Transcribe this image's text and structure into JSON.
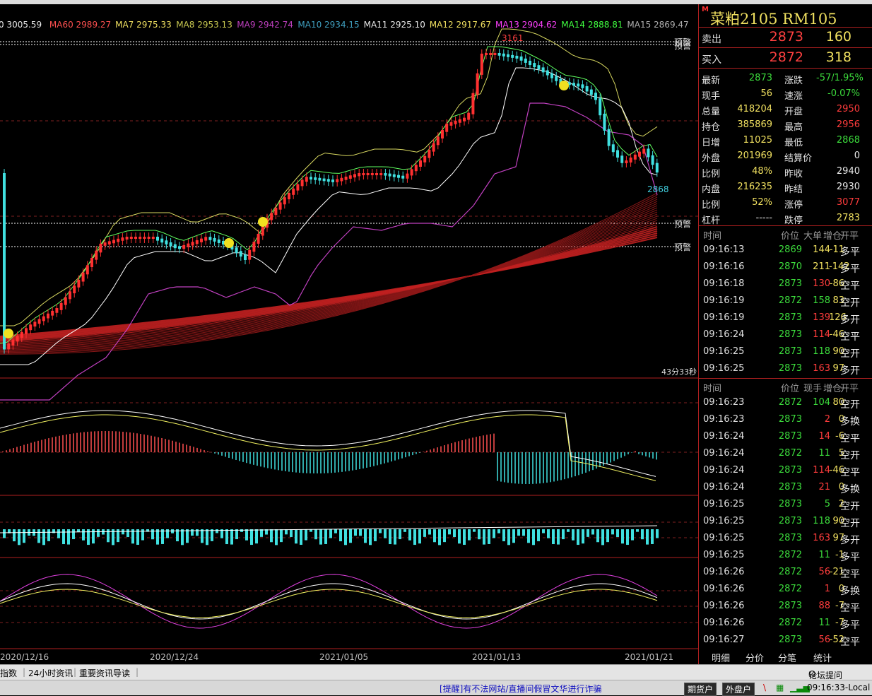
{
  "ma_labels": [
    {
      "text": "0 3005.59",
      "color": "#e8e8e8"
    },
    {
      "text": "MA60 2989.27",
      "color": "#ff5050"
    },
    {
      "text": "MA7 2975.33",
      "color": "#f0e060"
    },
    {
      "text": "MA8 2953.13",
      "color": "#c8c850"
    },
    {
      "text": "MA9 2942.74",
      "color": "#c040c0"
    },
    {
      "text": "MA10 2934.15",
      "color": "#40a0c0"
    },
    {
      "text": "MA11 2925.10",
      "color": "#e8e8e8"
    },
    {
      "text": "MA12 2917.67",
      "color": "#f0e060"
    },
    {
      "text": "MA13 2904.62",
      "color": "#ff40ff"
    },
    {
      "text": "MA14 2888.81",
      "color": "#40ff40"
    },
    {
      "text": "MA15 2869.47",
      "color": "#b0b0b0"
    }
  ],
  "chart_labels": {
    "high": "3161",
    "last": "2868",
    "countdown": "43分33秒",
    "alert": "预警"
  },
  "chart_data": {
    "type": "candlestick",
    "x_dates": [
      "2020/12/16",
      "2020/12/24",
      "2021/01/05",
      "2021/01/13",
      "2021/01/21"
    ],
    "price_range": [
      2640,
      3200
    ],
    "high_marker": 3161,
    "last_marker": 2868,
    "alert_levels": [
      3150,
      3145,
      2965,
      2935
    ]
  },
  "panel": {
    "title": "菜粕2105",
    "code": "RM105",
    "marker": "M",
    "sell": {
      "label": "卖出",
      "price": "2873",
      "vol": "160"
    },
    "buy": {
      "label": "买入",
      "price": "2872",
      "vol": "318"
    },
    "quote_rows": [
      {
        "l1": "最新",
        "v1": "2873",
        "c1": "grn",
        "l2": "涨跌",
        "v2": "-57/1.95%",
        "c2": "grn"
      },
      {
        "l1": "现手",
        "v1": "56",
        "c1": "yel",
        "l2": "速涨",
        "v2": "-0.07%",
        "c2": "grn"
      },
      {
        "l1": "总量",
        "v1": "418204",
        "c1": "yel",
        "l2": "开盘",
        "v2": "2950",
        "c2": "red"
      },
      {
        "l1": "持仓",
        "v1": "385869",
        "c1": "yel",
        "l2": "最高",
        "v2": "2956",
        "c2": "red"
      },
      {
        "l1": "日增",
        "v1": "11025",
        "c1": "yel",
        "l2": "最低",
        "v2": "2868",
        "c2": "grn"
      },
      {
        "l1": "外盘",
        "v1": "201969",
        "c1": "yel",
        "l2": "结算价",
        "v2": "0",
        "c2": "wht"
      },
      {
        "l1": "比例",
        "v1": "48%",
        "c1": "yel",
        "l2": "昨收",
        "v2": "2940",
        "c2": "wht"
      },
      {
        "l1": "内盘",
        "v1": "216235",
        "c1": "yel",
        "l2": "昨结",
        "v2": "2930",
        "c2": "wht"
      },
      {
        "l1": "比例",
        "v1": "52%",
        "c1": "yel",
        "l2": "涨停",
        "v2": "3077",
        "c2": "red"
      },
      {
        "l1": "杠杆",
        "v1": "-----",
        "c1": "wht",
        "l2": "跌停",
        "v2": "2783",
        "c2": "yel"
      }
    ],
    "tick_header1": [
      "时间",
      "价位",
      "大单",
      "增仓",
      "开平"
    ],
    "ticks1": [
      {
        "t": "09:16:13",
        "p": "2869",
        "pc": "grn",
        "v": "144",
        "vc": "yel",
        "c": "-11",
        "cc": "yel",
        "k": "多平"
      },
      {
        "t": "09:16:16",
        "p": "2870",
        "pc": "grn",
        "v": "211",
        "vc": "yel",
        "c": "-142",
        "cc": "yel",
        "k": "多平"
      },
      {
        "t": "09:16:18",
        "p": "2873",
        "pc": "grn",
        "v": "130",
        "vc": "red",
        "c": "-86",
        "cc": "yel",
        "k": "空平"
      },
      {
        "t": "09:16:19",
        "p": "2872",
        "pc": "grn",
        "v": "158",
        "vc": "grn",
        "c": "83",
        "cc": "yel",
        "k": "空开"
      },
      {
        "t": "09:16:19",
        "p": "2873",
        "pc": "grn",
        "v": "139",
        "vc": "red",
        "c": "126",
        "cc": "yel",
        "k": "多开"
      },
      {
        "t": "09:16:24",
        "p": "2873",
        "pc": "grn",
        "v": "114",
        "vc": "red",
        "c": "-46",
        "cc": "yel",
        "k": "空平"
      },
      {
        "t": "09:16:25",
        "p": "2873",
        "pc": "grn",
        "v": "118",
        "vc": "grn",
        "c": "90",
        "cc": "yel",
        "k": "空开"
      },
      {
        "t": "09:16:25",
        "p": "2873",
        "pc": "grn",
        "v": "163",
        "vc": "red",
        "c": "97",
        "cc": "yel",
        "k": "多开"
      }
    ],
    "tick_header2": [
      "时间",
      "价位",
      "现手",
      "增仓",
      "开平"
    ],
    "ticks2": [
      {
        "t": "09:16:23",
        "p": "2872",
        "pc": "grn",
        "v": "104",
        "vc": "grn",
        "c": "80",
        "cc": "yel",
        "k": "空开"
      },
      {
        "t": "09:16:23",
        "p": "2873",
        "pc": "grn",
        "v": "2",
        "vc": "red",
        "c": "0",
        "cc": "yel",
        "k": "多换"
      },
      {
        "t": "09:16:24",
        "p": "2873",
        "pc": "grn",
        "v": "14",
        "vc": "red",
        "c": "-6",
        "cc": "yel",
        "k": "空平"
      },
      {
        "t": "09:16:24",
        "p": "2872",
        "pc": "grn",
        "v": "11",
        "vc": "grn",
        "c": "5",
        "cc": "yel",
        "k": "空开"
      },
      {
        "t": "09:16:24",
        "p": "2873",
        "pc": "grn",
        "v": "114",
        "vc": "red",
        "c": "-46",
        "cc": "yel",
        "k": "空平"
      },
      {
        "t": "09:16:24",
        "p": "2873",
        "pc": "grn",
        "v": "21",
        "vc": "red",
        "c": "0",
        "cc": "yel",
        "k": "多换"
      },
      {
        "t": "09:16:25",
        "p": "2873",
        "pc": "grn",
        "v": "5",
        "vc": "grn",
        "c": "2",
        "cc": "yel",
        "k": "空开"
      },
      {
        "t": "09:16:25",
        "p": "2873",
        "pc": "grn",
        "v": "118",
        "vc": "grn",
        "c": "90",
        "cc": "yel",
        "k": "空开"
      },
      {
        "t": "09:16:25",
        "p": "2873",
        "pc": "grn",
        "v": "163",
        "vc": "red",
        "c": "97",
        "cc": "yel",
        "k": "多开"
      },
      {
        "t": "09:16:25",
        "p": "2872",
        "pc": "grn",
        "v": "11",
        "vc": "grn",
        "c": "-1",
        "cc": "yel",
        "k": "多平"
      },
      {
        "t": "09:16:26",
        "p": "2872",
        "pc": "grn",
        "v": "56",
        "vc": "red",
        "c": "-21",
        "cc": "yel",
        "k": "空平"
      },
      {
        "t": "09:16:26",
        "p": "2872",
        "pc": "grn",
        "v": "1",
        "vc": "red",
        "c": "0",
        "cc": "yel",
        "k": "多换"
      },
      {
        "t": "09:16:26",
        "p": "2873",
        "pc": "grn",
        "v": "88",
        "vc": "red",
        "c": "-7",
        "cc": "yel",
        "k": "空平"
      },
      {
        "t": "09:16:26",
        "p": "2872",
        "pc": "grn",
        "v": "11",
        "vc": "grn",
        "c": "-7",
        "cc": "yel",
        "k": "多平"
      },
      {
        "t": "09:16:27",
        "p": "2873",
        "pc": "grn",
        "v": "56",
        "vc": "red",
        "c": "-52",
        "cc": "yel",
        "k": "空平"
      }
    ],
    "tabs": [
      "明细",
      "分价",
      "分笔",
      "统计"
    ]
  },
  "bottom": {
    "items": [
      "指数",
      "24小时资讯",
      "重要资讯导读"
    ],
    "forum": "论坛提问"
  },
  "status": {
    "warning": "[提醒]有不法网站/直播间假冒文华进行诈骗",
    "btn1": "期货户",
    "btn2": "外盘户",
    "time": "09:16:33-Local"
  }
}
